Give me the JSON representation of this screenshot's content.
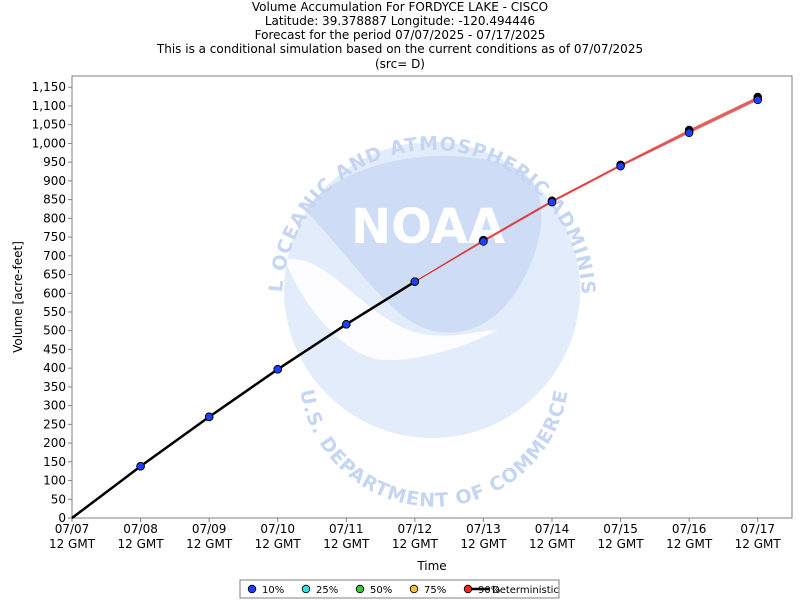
{
  "title_lines": [
    "Volume Accumulation For FORDYCE LAKE - CISCO",
    "Latitude: 39.378887 Longitude: -120.494446",
    "Forecast for the period 07/07/2025 - 07/17/2025",
    "This is a conditional simulation based on the current conditions as of 07/07/2025",
    "(src= D)"
  ],
  "watermark": {
    "top_text": "NATIONAL OCEANIC AND ATMOSPHERIC ADMINISTRATION",
    "bottom_text": "U.S. DEPARTMENT OF COMMERCE",
    "logo_text": "NOAA"
  },
  "chart_data": {
    "type": "line",
    "xlabel": "Time",
    "ylabel": "Volume [acre-feet]",
    "ylim": [
      0,
      1180
    ],
    "y_ticks": [
      0,
      50,
      100,
      150,
      200,
      250,
      300,
      350,
      400,
      450,
      500,
      550,
      600,
      650,
      700,
      750,
      800,
      850,
      900,
      950,
      1000,
      1050,
      1100,
      1150
    ],
    "y_tick_labels": [
      "0",
      "50",
      "100",
      "150",
      "200",
      "250",
      "300",
      "350",
      "400",
      "450",
      "500",
      "550",
      "600",
      "650",
      "700",
      "750",
      "800",
      "850",
      "900",
      "950",
      "1,000",
      "1,050",
      "1,100",
      "1,150"
    ],
    "x_tick_labels": [
      [
        "07/07",
        "12 GMT"
      ],
      [
        "07/08",
        "12 GMT"
      ],
      [
        "07/09",
        "12 GMT"
      ],
      [
        "07/10",
        "12 GMT"
      ],
      [
        "07/11",
        "12 GMT"
      ],
      [
        "07/12",
        "12 GMT"
      ],
      [
        "07/13",
        "12 GMT"
      ],
      [
        "07/14",
        "12 GMT"
      ],
      [
        "07/15",
        "12 GMT"
      ],
      [
        "07/16",
        "12 GMT"
      ],
      [
        "07/17",
        "12 GMT"
      ]
    ],
    "x": [
      0,
      1,
      2,
      3,
      4,
      5,
      6,
      7,
      8,
      9,
      10
    ],
    "series": [
      {
        "name": "10%",
        "color": "#1f3fff",
        "values": [
          null,
          138,
          270,
          397,
          517,
          631,
          738,
          843,
          939,
          1028,
          1116
        ]
      },
      {
        "name": "25%",
        "color": "#33e0e0",
        "values": [
          null,
          138,
          270,
          397,
          517,
          631,
          739,
          844,
          940,
          1030,
          1118
        ]
      },
      {
        "name": "50%",
        "color": "#33cc33",
        "values": [
          null,
          138,
          270,
          397,
          517,
          631,
          740,
          845,
          941,
          1032,
          1120
        ]
      },
      {
        "name": "75%",
        "color": "#f0c040",
        "values": [
          null,
          138,
          270,
          397,
          517,
          631,
          741,
          846,
          942,
          1034,
          1122
        ]
      },
      {
        "name": "90%",
        "color": "#ff2020",
        "values": [
          null,
          138,
          270,
          397,
          517,
          631,
          742,
          847,
          943,
          1036,
          1124
        ]
      }
    ],
    "deterministic": {
      "name": "Deterministic",
      "color": "#000000",
      "values": [
        0,
        138,
        270,
        397,
        517,
        631
      ]
    },
    "forecast_line_color": "#e03030",
    "forecast_band_color": "#f4b8b8",
    "marker_fill": "#1f3fff",
    "grid": false,
    "legend_position": "bottom-center"
  }
}
